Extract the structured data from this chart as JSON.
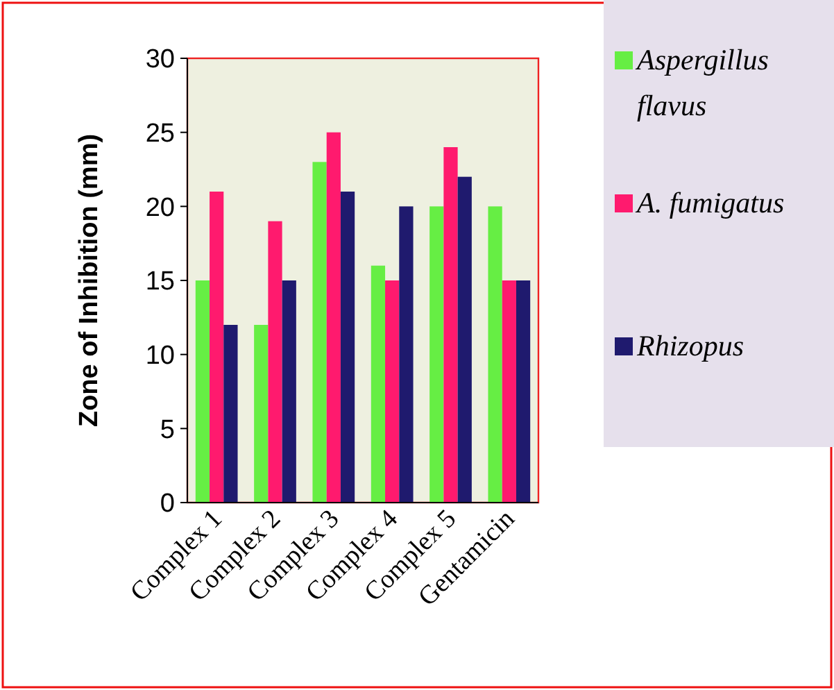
{
  "chart_data": {
    "type": "bar",
    "ylabel": "Zone of Inhibition (mm)",
    "categories": [
      "Complex 1",
      "Complex 2",
      "Complex 3",
      "Complex 4",
      "Complex 5",
      "Gentamicin"
    ],
    "series": [
      {
        "name": "Aspergillus flavus",
        "color": "#66ee44",
        "values": [
          15,
          12,
          23,
          16,
          20,
          20
        ]
      },
      {
        "name": "A. fumigatus",
        "color": "#ff1a6e",
        "values": [
          21,
          19,
          25,
          15,
          24,
          15
        ]
      },
      {
        "name": "Rhizopus",
        "color": "#1f1a6e",
        "values": [
          12,
          15,
          21,
          20,
          22,
          15
        ]
      }
    ],
    "ylim": [
      0,
      30
    ],
    "yticks": [
      0,
      5,
      10,
      15,
      20,
      25,
      30
    ],
    "legend": "right"
  }
}
